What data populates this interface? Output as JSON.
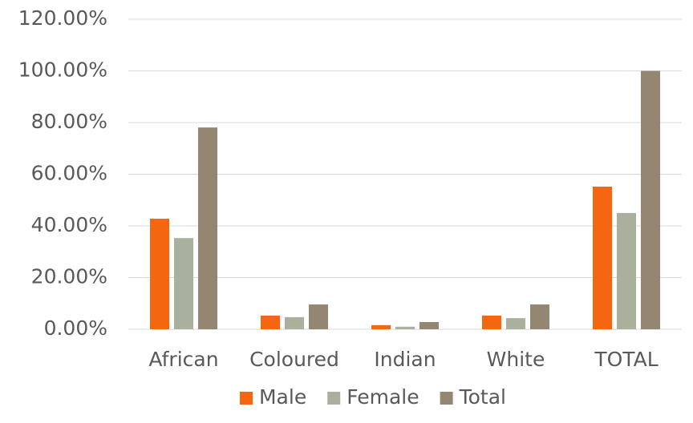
{
  "chart_data": {
    "type": "bar",
    "categories": [
      "African",
      "Coloured",
      "Indian",
      "White",
      "TOTAL"
    ],
    "series": [
      {
        "name": "Male",
        "color": "#f4660f",
        "values": [
          42.8,
          5.3,
          1.6,
          5.3,
          55.2
        ]
      },
      {
        "name": "Female",
        "color": "#a9b19e",
        "values": [
          35.3,
          4.7,
          1.0,
          4.3,
          45.0
        ]
      },
      {
        "name": "Total",
        "color": "#958672",
        "values": [
          78.1,
          9.6,
          2.8,
          9.6,
          100.0
        ]
      }
    ],
    "ylim": [
      0,
      120
    ],
    "yticks": [
      {
        "value": 0,
        "label": "0.00%"
      },
      {
        "value": 20,
        "label": "20.00%"
      },
      {
        "value": 40,
        "label": "40.00%"
      },
      {
        "value": 60,
        "label": "60.00%"
      },
      {
        "value": 80,
        "label": "80.00%"
      },
      {
        "value": 100,
        "label": "100.00%"
      },
      {
        "value": 120,
        "label": "120.00%"
      }
    ],
    "grid": true,
    "legend": "bottom"
  }
}
